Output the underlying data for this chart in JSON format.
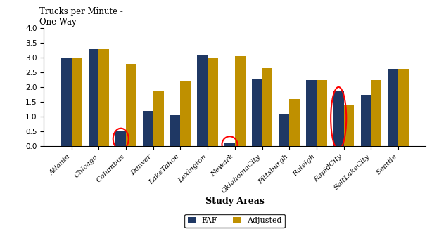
{
  "categories": [
    "Atlanta",
    "Chicago",
    "Columbus",
    "Denver",
    "LakeTahoe",
    "Lexington",
    "Newark",
    "OklahomaCity",
    "Pittsburgh",
    "Raleigh",
    "RapidCity",
    "SaltLakeCity",
    "Seattle"
  ],
  "faf": [
    3.0,
    3.3,
    0.5,
    1.2,
    1.05,
    3.1,
    0.12,
    2.3,
    1.1,
    2.25,
    1.9,
    1.75,
    2.62
  ],
  "adjusted": [
    3.0,
    3.3,
    2.8,
    1.9,
    2.2,
    3.0,
    3.05,
    2.65,
    1.6,
    2.25,
    1.4,
    2.25,
    2.62
  ],
  "faf_color": "#1F3864",
  "adjusted_color": "#BF9000",
  "circled_faf": [
    "Columbus",
    "Newark"
  ],
  "circled_adj": [
    "RapidCity"
  ],
  "circle_color": "red",
  "ylabel_line1": "Trucks per Minute -",
  "ylabel_line2": "One Way",
  "xlabel": "Study Areas",
  "ylim": [
    0,
    4.0
  ],
  "yticks": [
    0.0,
    0.5,
    1.0,
    1.5,
    2.0,
    2.5,
    3.0,
    3.5,
    4.0
  ],
  "legend_labels": [
    "FAF",
    "Adjusted"
  ],
  "tick_fontsize": 7.5,
  "legend_fontsize": 8,
  "bar_width": 0.38
}
